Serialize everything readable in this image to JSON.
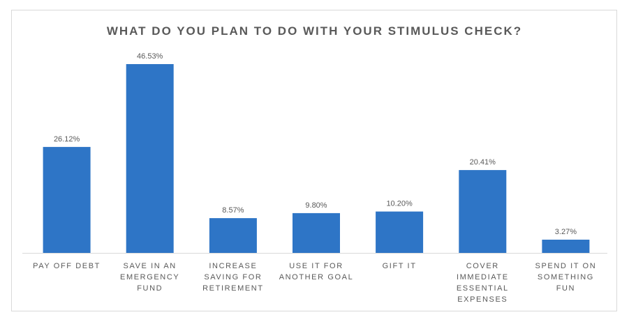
{
  "chart_data": {
    "type": "bar",
    "title": "WHAT DO YOU PLAN TO DO WITH YOUR STIMULUS CHECK?",
    "xlabel": "",
    "ylabel": "",
    "ylim": [
      0,
      50
    ],
    "grid": false,
    "legend": "none",
    "bar_color": "#2E75C6",
    "value_format": "percent_2dp",
    "categories": [
      [
        "PAY OFF DEBT"
      ],
      [
        "SAVE IN AN",
        "EMERGENCY",
        "FUND"
      ],
      [
        "INCREASE",
        "SAVING FOR",
        "RETIREMENT"
      ],
      [
        "USE IT FOR",
        "ANOTHER GOAL"
      ],
      [
        "GIFT IT"
      ],
      [
        "COVER",
        "IMMEDIATE",
        "ESSENTIAL",
        "EXPENSES"
      ],
      [
        "SPEND IT ON",
        "SOMETHING",
        "FUN"
      ]
    ],
    "values": [
      26.12,
      46.53,
      8.57,
      9.8,
      10.2,
      20.41,
      3.27
    ],
    "data_labels": [
      "26.12%",
      "46.53%",
      "8.57%",
      "9.80%",
      "10.20%",
      "20.41%",
      "3.27%"
    ]
  }
}
